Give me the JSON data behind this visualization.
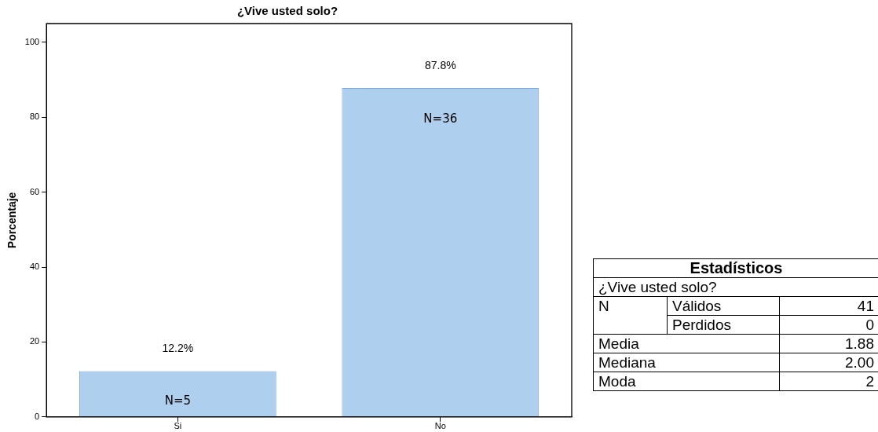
{
  "chart_data": [
    {
      "type": "bar",
      "title": "¿Vive usted solo?",
      "ylabel": "Porcentaje",
      "categories": [
        "Si",
        "No"
      ],
      "values": [
        12.2,
        87.8
      ],
      "color": "#aecfee",
      "value_labels": [
        "12.2%",
        "87.8%"
      ],
      "annotations": [
        "N=5",
        "N=36"
      ],
      "ylim": [
        0,
        105
      ],
      "yticks": [
        0,
        20,
        40,
        60,
        80,
        100
      ],
      "grid": false,
      "legend": false
    },
    {
      "type": "other",
      "title": "Estadísticos",
      "subtitle": "¿Vive usted solo?",
      "annotations": [
        "N"
      ],
      "categories": [
        "Válidos",
        "Perdidos",
        "Media",
        "Mediana",
        "Moda"
      ],
      "value_labels": [
        "41",
        "0",
        "1.88",
        "2.00",
        "2"
      ]
    }
  ]
}
